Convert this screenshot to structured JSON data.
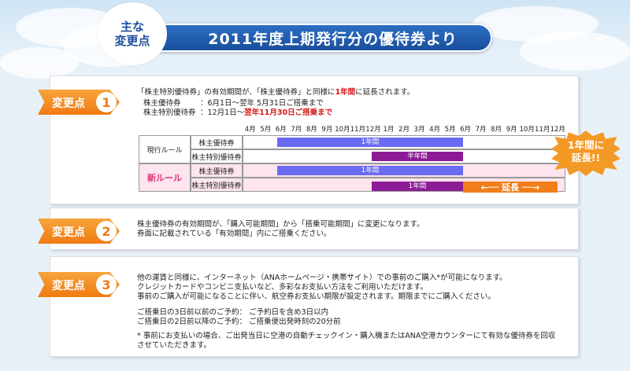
{
  "header": {
    "badge_line1": "主な",
    "badge_line2": "変更点",
    "title": "2011年度上期発行分の優待券より"
  },
  "section1": {
    "tag_label": "変更点",
    "tag_number": "1",
    "line1_pre": "「株主特別優待券」の有効期間が、「株主優待券」と同様に",
    "line1_red": "1年間",
    "line1_post": "に延長されます。",
    "row1_name": "株主優待券",
    "row1_period": "：6月1日～翌年 5月31日ご搭乗まで",
    "row2_name": "株主特別優待券",
    "row2_period_pre": "：12月1日～",
    "row2_period_red": "翌年11月30日ご搭乗まで",
    "months": [
      "4月",
      "5月",
      "6月",
      "7月",
      "8月",
      "9月",
      "10月",
      "11月",
      "12月",
      "1月",
      "2月",
      "3月",
      "4月",
      "5月",
      "6月",
      "7月",
      "8月",
      "9月",
      "10月",
      "11月",
      "12月"
    ],
    "current_rule": "現行ルール",
    "new_rule": "新ルール",
    "ticket_regular": "株主優待券",
    "ticket_special": "株主特別優待券",
    "bar_one_year": "1年間",
    "bar_half_year": "半年間",
    "extend_label": "←── 延長 ──→",
    "burst_line1": "1年間に",
    "burst_line2": "延長!!"
  },
  "section2": {
    "tag_label": "変更点",
    "tag_number": "2",
    "line1": "株主優待券の有効期間が、「購入可能期間」から「搭乗可能期間」に変更になります。",
    "line2": "券面に記載されている「有効期間」内にご搭乗ください。"
  },
  "section3": {
    "tag_label": "変更点",
    "tag_number": "3",
    "line1": "他の運賃と同様に、インターネット（ANAホームページ・携帯サイト）での事前のご購入*が可能になります。",
    "line2": "クレジットカードやコンビニ支払いなど、多彩なお支払い方法をご利用いただけます。",
    "line3": "事前のご購入が可能になることに伴い、航空券お支払い期限が設定されます。期限までにご購入ください。",
    "line4": "ご搭乗日の3日前以前のご予約：  ご予約日を含め3日以内",
    "line5": "ご搭乗日の2日前以降のご予約：  ご搭乗便出発時刻の20分前",
    "note1": "* 事前にお支払いの場合、ご出発当日に空港の自動チェックイン・購入機またはANA空港カウンターにて有効な優待券を回収",
    "note2": "させていただきます。"
  },
  "colors": {
    "accent_orange": "#ef7b12",
    "title_blue": "#1a4f9c",
    "bar_blue": "#6a6bf2",
    "bar_purple": "#8c1c96",
    "highlight_red": "#d81818",
    "new_rule_bg": "#fde4ee"
  }
}
